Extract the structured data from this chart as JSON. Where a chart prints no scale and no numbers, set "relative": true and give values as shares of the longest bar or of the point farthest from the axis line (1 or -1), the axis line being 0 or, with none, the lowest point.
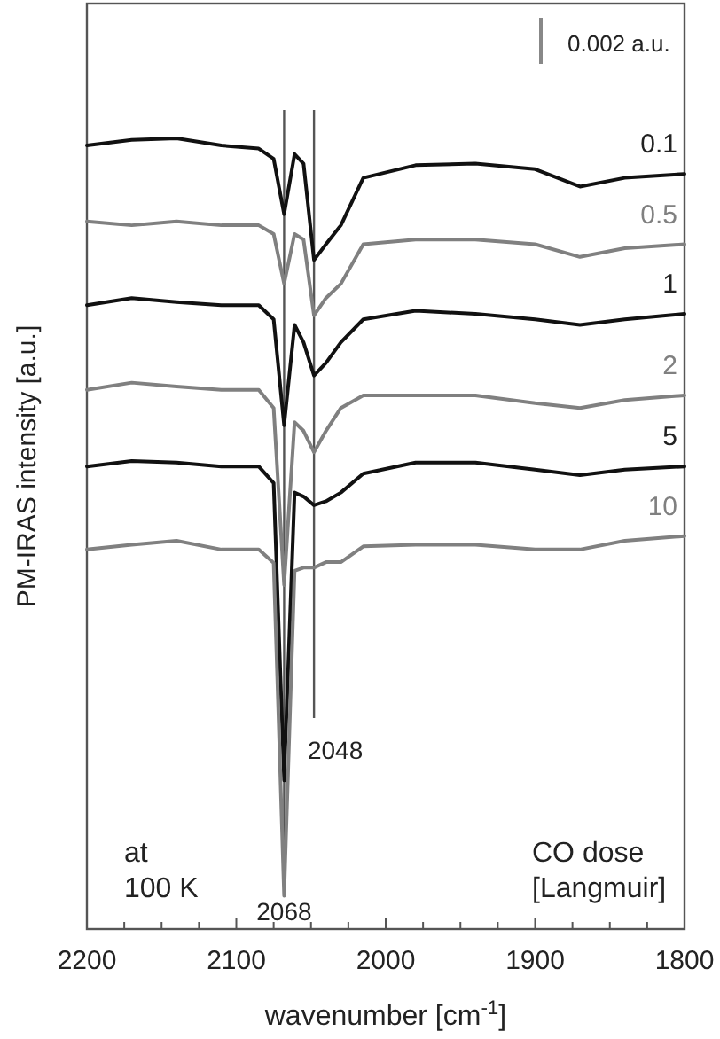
{
  "chart_data": {
    "type": "line",
    "relative": true,
    "xlabel": "wavenumber [cm$^{-1}$]",
    "ylabel": "PM-IRAS intensity [a.u.]",
    "legend_title": "CO dose\n[Langmuir]",
    "annotations": [
      "0.002 a.u.",
      "at\n100 K"
    ],
    "xlim": [
      2200,
      1800
    ],
    "xticks": [
      2200,
      {
        "value": 2175,
        "label": null
      },
      {
        "value": 2150,
        "label": null
      },
      {
        "value": 2125,
        "label": null
      },
      2100,
      {
        "value": 2075,
        "label": null
      },
      {
        "value": 2050,
        "label": null
      },
      {
        "value": 2025,
        "label": null
      },
      2000,
      {
        "value": 1975,
        "label": null
      },
      {
        "value": 1950,
        "label": null
      },
      {
        "value": 1925,
        "label": null
      },
      1900,
      {
        "value": 1875,
        "label": null
      },
      {
        "value": 1850,
        "label": null
      },
      {
        "value": 1825,
        "label": null
      },
      1800
    ],
    "x": [
      2200,
      2170,
      2140,
      2110,
      2085,
      2075,
      2068,
      2061,
      2055,
      2048,
      2040,
      2030,
      2015,
      1980,
      1940,
      1900,
      1870,
      1840,
      1800
    ],
    "ref_lines": [
      {
        "axis": "x",
        "value": 2068,
        "label": "2068",
        "color": "#555555"
      },
      {
        "axis": "x",
        "value": 2048,
        "label": "2048",
        "color": "#555555"
      }
    ],
    "series": [
      {
        "name": "0.1",
        "color": "#111111",
        "values": [
          0.991,
          0.998,
          1.0,
          0.991,
          0.987,
          0.974,
          0.904,
          0.98,
          0.968,
          0.846,
          0.866,
          0.89,
          0.95,
          0.966,
          0.968,
          0.961,
          0.939,
          0.95,
          0.955
        ]
      },
      {
        "name": "0.5",
        "color": "#808080",
        "values": [
          0.895,
          0.89,
          0.895,
          0.89,
          0.89,
          0.879,
          0.816,
          0.879,
          0.872,
          0.776,
          0.798,
          0.816,
          0.866,
          0.872,
          0.872,
          0.866,
          0.85,
          0.861,
          0.866
        ]
      },
      {
        "name": "1",
        "color": "#111111",
        "values": [
          0.789,
          0.798,
          0.793,
          0.789,
          0.789,
          0.771,
          0.637,
          0.764,
          0.742,
          0.7,
          0.716,
          0.742,
          0.771,
          0.782,
          0.778,
          0.771,
          0.764,
          0.771,
          0.778
        ]
      },
      {
        "name": "2",
        "color": "#808080",
        "values": [
          0.682,
          0.691,
          0.686,
          0.682,
          0.682,
          0.659,
          0.435,
          0.641,
          0.63,
          0.603,
          0.63,
          0.659,
          0.675,
          0.675,
          0.675,
          0.665,
          0.659,
          0.669,
          0.675
        ]
      },
      {
        "name": "5",
        "color": "#111111",
        "values": [
          0.585,
          0.592,
          0.59,
          0.585,
          0.585,
          0.564,
          0.188,
          0.552,
          0.547,
          0.536,
          0.541,
          0.552,
          0.576,
          0.59,
          0.59,
          0.581,
          0.574,
          0.581,
          0.585
        ]
      },
      {
        "name": "10",
        "color": "#808080",
        "values": [
          0.48,
          0.486,
          0.491,
          0.48,
          0.48,
          0.463,
          0.042,
          0.453,
          0.457,
          0.457,
          0.464,
          0.464,
          0.484,
          0.486,
          0.486,
          0.48,
          0.48,
          0.491,
          0.497
        ]
      }
    ]
  }
}
